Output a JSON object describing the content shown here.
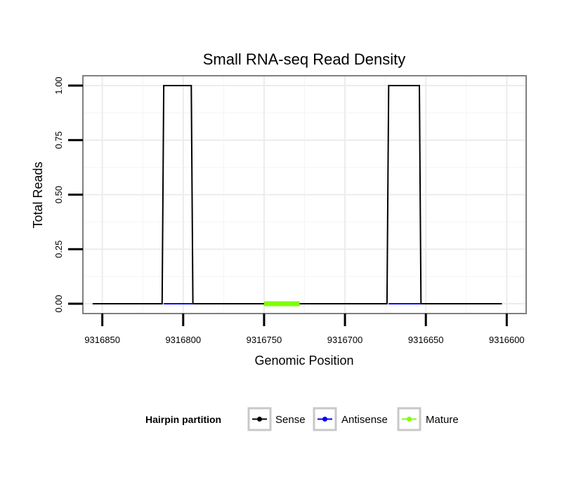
{
  "chart_data": {
    "type": "line",
    "title": "Small RNA-seq Read Density",
    "xlabel": "Genomic Position",
    "ylabel": "Total Reads",
    "x_reversed": true,
    "xlim": [
      9316862,
      9316588
    ],
    "ylim": [
      -0.045,
      1.045
    ],
    "x_ticks": [
      9316850,
      9316800,
      9316750,
      9316700,
      9316650,
      9316600
    ],
    "x_tick_labels": [
      "9316850",
      "9316800",
      "9316750",
      "9316700",
      "9316650",
      "9316600"
    ],
    "y_ticks": [
      0,
      0.25,
      0.5,
      0.75,
      1
    ],
    "y_tick_labels": [
      "0.00",
      "0.25",
      "0.50",
      "0.75",
      "1.00"
    ],
    "grid": true,
    "series": [
      {
        "name": "Sense",
        "color": "#000000",
        "x": [
          9316856,
          9316813,
          9316812,
          9316795,
          9316794,
          9316674,
          9316673,
          9316654,
          9316653,
          9316603
        ],
        "y": [
          0,
          0,
          1,
          1,
          0,
          0,
          1,
          1,
          0,
          0
        ]
      },
      {
        "name": "Antisense",
        "color": "#0000ff",
        "x": [
          9316812,
          9316794,
          9316673,
          9316653
        ],
        "y": [
          0,
          0,
          0,
          0
        ],
        "segments": [
          [
            0,
            1
          ],
          [
            2,
            3
          ]
        ]
      },
      {
        "name": "Mature",
        "color": "#7fff00",
        "x": [
          9316750,
          9316728
        ],
        "y": [
          0,
          0
        ]
      }
    ],
    "legend": {
      "title": "Hairpin partition",
      "position": "bottom",
      "entries": [
        {
          "label": "Sense",
          "color": "#000000"
        },
        {
          "label": "Antisense",
          "color": "#0000ff"
        },
        {
          "label": "Mature",
          "color": "#7fff00"
        }
      ]
    }
  }
}
